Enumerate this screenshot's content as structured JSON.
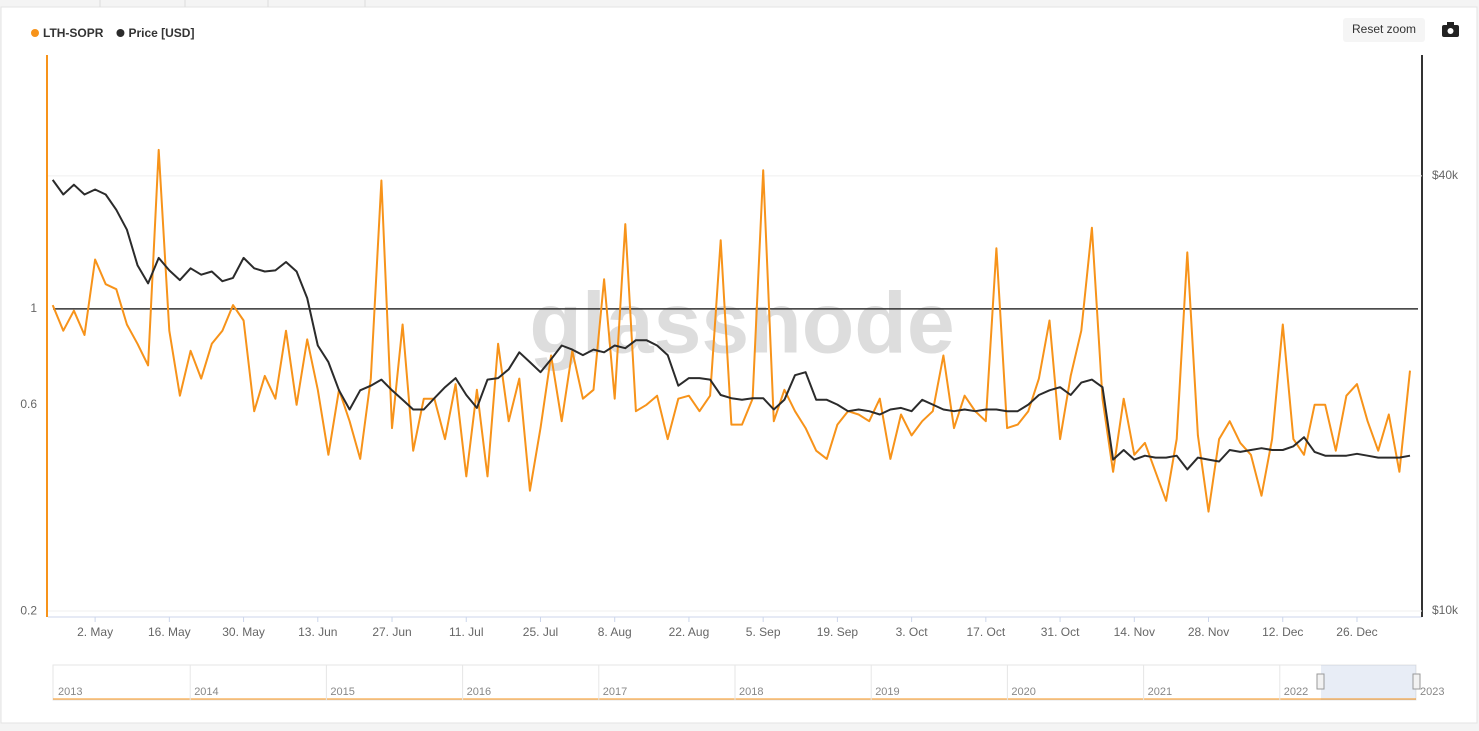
{
  "chart_data": {
    "type": "line",
    "categories": [
      "24. Apr",
      "26. Apr",
      "28. Apr",
      "30. Apr",
      "2. May",
      "4. May",
      "6. May",
      "8. May",
      "10. May",
      "12. May",
      "14. May",
      "16. May",
      "18. May",
      "20. May",
      "22. May",
      "24. May",
      "26. May",
      "28. May",
      "30. May",
      "1. Jun",
      "3. Jun",
      "5. Jun",
      "7. Jun",
      "9. Jun",
      "11. Jun",
      "13. Jun",
      "15. Jun",
      "17. Jun",
      "19. Jun",
      "21. Jun",
      "23. Jun",
      "25. Jun",
      "27. Jun",
      "29. Jun",
      "1. Jul",
      "3. Jul",
      "5. Jul",
      "7. Jul",
      "9. Jul",
      "11. Jul",
      "13. Jul",
      "15. Jul",
      "17. Jul",
      "19. Jul",
      "21. Jul",
      "23. Jul",
      "25. Jul",
      "27. Jul",
      "29. Jul",
      "31. Jul",
      "2. Aug",
      "4. Aug",
      "6. Aug",
      "8. Aug",
      "10. Aug",
      "12. Aug",
      "14. Aug",
      "16. Aug",
      "18. Aug",
      "20. Aug",
      "22. Aug",
      "24. Aug",
      "26. Aug",
      "28. Aug",
      "30. Aug",
      "1. Sep",
      "3. Sep",
      "5. Sep",
      "7. Sep",
      "9. Sep",
      "11. Sep",
      "13. Sep",
      "15. Sep",
      "17. Sep",
      "19. Sep",
      "21. Sep",
      "23. Sep",
      "25. Sep",
      "27. Sep",
      "29. Sep",
      "1. Oct",
      "3. Oct",
      "5. Oct",
      "7. Oct",
      "9. Oct",
      "11. Oct",
      "13. Oct",
      "15. Oct",
      "17. Oct",
      "19. Oct",
      "21. Oct",
      "23. Oct",
      "25. Oct",
      "27. Oct",
      "29. Oct",
      "31. Oct",
      "2. Nov",
      "4. Nov",
      "6. Nov",
      "8. Nov",
      "10. Nov",
      "12. Nov",
      "14. Nov",
      "16. Nov",
      "18. Nov",
      "20. Nov",
      "22. Nov",
      "24. Nov",
      "26. Nov",
      "28. Nov",
      "30. Nov",
      "2. Dec",
      "4. Dec",
      "6. Dec",
      "8. Dec",
      "10. Dec",
      "12. Dec",
      "14. Dec",
      "16. Dec",
      "18. Dec",
      "20. Dec",
      "22. Dec",
      "24. Dec",
      "26. Dec",
      "28. Dec",
      "30. Dec",
      "1. Jan",
      "3. Jan",
      "5. Jan"
    ],
    "xticks": [
      "2. May",
      "16. May",
      "30. May",
      "13. Jun",
      "27. Jun",
      "11. Jul",
      "25. Jul",
      "8. Aug",
      "22. Aug",
      "5. Sep",
      "19. Sep",
      "3. Oct",
      "17. Oct",
      "31. Oct",
      "14. Nov",
      "28. Nov",
      "12. Dec",
      "26. Dec"
    ],
    "series": [
      {
        "name": "LTH-SOPR",
        "color": "#f7931a",
        "axis": "y",
        "values": [
          1.02,
          0.89,
          0.99,
          0.87,
          1.3,
          1.14,
          1.11,
          0.92,
          0.83,
          0.74,
          2.33,
          0.89,
          0.63,
          0.8,
          0.69,
          0.83,
          0.89,
          1.02,
          0.94,
          0.58,
          0.7,
          0.62,
          0.89,
          0.6,
          0.85,
          0.65,
          0.46,
          0.65,
          0.55,
          0.45,
          0.69,
          1.98,
          0.53,
          0.92,
          0.47,
          0.62,
          0.62,
          0.5,
          0.67,
          0.41,
          0.65,
          0.41,
          0.83,
          0.55,
          0.69,
          0.38,
          0.53,
          0.78,
          0.55,
          0.8,
          0.62,
          0.65,
          1.17,
          0.62,
          1.57,
          0.58,
          0.6,
          0.63,
          0.5,
          0.62,
          0.63,
          0.58,
          0.63,
          1.44,
          0.54,
          0.54,
          0.62,
          2.09,
          0.55,
          0.65,
          0.58,
          0.53,
          0.47,
          0.45,
          0.54,
          0.58,
          0.57,
          0.55,
          0.62,
          0.45,
          0.57,
          0.51,
          0.55,
          0.58,
          0.78,
          0.53,
          0.63,
          0.58,
          0.55,
          1.38,
          0.53,
          0.54,
          0.58,
          0.69,
          0.94,
          0.5,
          0.7,
          0.89,
          1.54,
          0.62,
          0.42,
          0.62,
          0.46,
          0.49,
          0.42,
          0.36,
          0.5,
          1.35,
          0.51,
          0.34,
          0.5,
          0.55,
          0.49,
          0.46,
          0.37,
          0.5,
          0.92,
          0.5,
          0.46,
          0.6,
          0.6,
          0.47,
          0.63,
          0.67,
          0.55,
          0.47,
          0.57,
          0.42,
          0.72
        ]
      },
      {
        "name": "Price [USD]",
        "color": "#2b2b2b",
        "axis": "y2",
        "values": [
          39500,
          37700,
          38900,
          37700,
          38300,
          37700,
          35900,
          33700,
          30100,
          28400,
          30800,
          29600,
          28700,
          29800,
          29200,
          29500,
          28600,
          28900,
          30800,
          29800,
          29500,
          29600,
          30400,
          29500,
          27100,
          23300,
          22100,
          20200,
          19000,
          20200,
          20500,
          20900,
          20200,
          19600,
          19000,
          19000,
          19700,
          20400,
          21000,
          19900,
          19100,
          20900,
          21000,
          21600,
          22800,
          22100,
          21400,
          22300,
          23300,
          23000,
          22600,
          23000,
          22800,
          23300,
          23100,
          23700,
          23700,
          23300,
          22600,
          20500,
          21000,
          21000,
          20900,
          19900,
          19700,
          19600,
          19700,
          19700,
          19000,
          19600,
          21200,
          21400,
          19600,
          19600,
          19300,
          18900,
          19000,
          18900,
          18700,
          19000,
          19100,
          18900,
          19600,
          19300,
          19000,
          18900,
          19000,
          18900,
          19000,
          19000,
          18900,
          18900,
          19300,
          19900,
          20200,
          20400,
          19900,
          20700,
          20900,
          20400,
          16200,
          16700,
          16200,
          16400,
          16300,
          16300,
          16400,
          15700,
          16300,
          16200,
          16100,
          16700,
          16600,
          16700,
          16800,
          16700,
          16700,
          16900,
          17400,
          16600,
          16400,
          16400,
          16400,
          16500,
          16400,
          16300,
          16300,
          16300,
          16400
        ]
      }
    ],
    "ylim": [
      0.194,
      3.86
    ],
    "yticks": [
      0.2,
      0.6,
      1
    ],
    "log_scale": true,
    "y2lim": [
      9810,
      58800
    ],
    "y2ticks": [
      {
        "value": 10000,
        "label": "$10k"
      },
      {
        "value": 40000,
        "label": "$40k"
      }
    ],
    "y2_log_scale": true,
    "reference_line": 1,
    "legend": "top-left"
  },
  "ui": {
    "reset_zoom": "Reset zoom",
    "watermark": "glassnode"
  },
  "navigator_years": [
    "2013",
    "2014",
    "2015",
    "2016",
    "2017",
    "2018",
    "2019",
    "2020",
    "2021",
    "2022",
    "2023"
  ]
}
